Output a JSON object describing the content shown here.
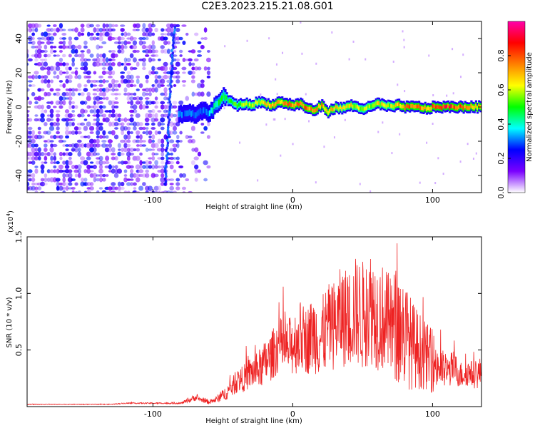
{
  "title": "C2E3.2023.215.21.08.G01",
  "chart_data": [
    {
      "type": "heatmap",
      "xlabel": "Height of straight line (km)",
      "ylabel": "Frequency (Hz)",
      "xlim": [
        -190,
        135
      ],
      "ylim": [
        -50,
        50
      ],
      "x_ticks": [
        -100,
        0,
        100
      ],
      "y_ticks": [
        -40,
        -20,
        0,
        20,
        40
      ],
      "colorbar": {
        "label": "Normalized spectral amplitude",
        "range": [
          0,
          1
        ],
        "ticks": [
          "0.0",
          "0.2",
          "0.4",
          "0.6",
          "0.8"
        ],
        "tick_values": [
          0,
          0.2,
          0.4,
          0.6,
          0.8
        ],
        "colormap": [
          "#ffffff",
          "#7a00ff",
          "#0000ff",
          "#00ffff",
          "#00ff00",
          "#ffff00",
          "#ff8000",
          "#ff0000",
          "#ff00aa"
        ]
      },
      "ridge": {
        "x": [
          -80,
          -75,
          -70,
          -65,
          -60,
          -55,
          -50,
          -45,
          -40,
          -35,
          -30,
          -25,
          -20,
          -15,
          -10,
          -5,
          0,
          5,
          10,
          15,
          20,
          25,
          30,
          35,
          40,
          45,
          50,
          55,
          60,
          65,
          70,
          75,
          80,
          85,
          90,
          95,
          100,
          105,
          110,
          115,
          120,
          125,
          130
        ],
        "y": [
          -4,
          -3,
          -5,
          -2,
          -4,
          2,
          6,
          3,
          1,
          2,
          1,
          3,
          2,
          1,
          3,
          2,
          1,
          2,
          -1,
          -2,
          1,
          -3,
          0,
          -1,
          1,
          0,
          -1,
          0,
          2,
          1,
          0,
          1,
          0,
          0,
          0,
          -1,
          0,
          0,
          0,
          0,
          0,
          0,
          0
        ],
        "amplitude": [
          0.3,
          0.3,
          0.3,
          0.3,
          0.35,
          0.45,
          0.5,
          0.5,
          0.55,
          0.6,
          0.6,
          0.6,
          0.65,
          0.7,
          0.7,
          0.75,
          0.7,
          0.75,
          0.8,
          0.7,
          0.75,
          0.7,
          0.65,
          0.6,
          0.65,
          0.6,
          0.6,
          0.6,
          0.65,
          0.6,
          0.6,
          0.7,
          0.75,
          0.8,
          0.75,
          0.7,
          0.8,
          0.85,
          0.85,
          0.85,
          0.8,
          0.75,
          0.7
        ]
      }
    },
    {
      "type": "line",
      "xlabel": "Height of straight line (km)",
      "ylabel": "SNR (10 * v/v)",
      "y_multiplier": "(x10",
      "y_multiplier_exp": "4",
      "y_multiplier_close": ")",
      "xlim": [
        -190,
        135
      ],
      "ylim": [
        0,
        1.5
      ],
      "x_ticks": [
        -100,
        0,
        100
      ],
      "y_ticks": [
        0.5,
        1.0,
        1.5
      ],
      "y_tick_labels": [
        "0.5",
        "1.0",
        "1.5"
      ],
      "color": "#ee2222",
      "series": [
        {
          "x": [
            -190,
            -180,
            -170,
            -160,
            -150,
            -140,
            -130,
            -120,
            -110,
            -100,
            -90,
            -80,
            -75,
            -70,
            -65,
            -60,
            -55,
            -50,
            -45,
            -40,
            -35,
            -30,
            -25,
            -20,
            -15,
            -10,
            -5,
            0,
            5,
            10,
            15,
            20,
            25,
            30,
            35,
            40,
            45,
            50,
            55,
            60,
            65,
            70,
            75,
            80,
            85,
            90,
            95,
            100,
            105,
            110,
            115,
            120,
            125,
            130,
            135
          ],
          "values": [
            0.02,
            0.02,
            0.02,
            0.02,
            0.02,
            0.02,
            0.02,
            0.03,
            0.03,
            0.03,
            0.03,
            0.03,
            0.05,
            0.08,
            0.06,
            0.04,
            0.06,
            0.1,
            0.15,
            0.22,
            0.25,
            0.3,
            0.32,
            0.38,
            0.45,
            0.55,
            0.5,
            0.55,
            0.62,
            0.58,
            0.65,
            0.6,
            0.7,
            0.72,
            0.8,
            0.78,
            0.85,
            0.8,
            0.9,
            0.82,
            0.78,
            0.7,
            0.72,
            0.65,
            0.55,
            0.5,
            0.45,
            0.4,
            0.35,
            0.3,
            0.35,
            0.28,
            0.3,
            0.28,
            0.3
          ],
          "spread": [
            0.003,
            0.003,
            0.003,
            0.003,
            0.003,
            0.003,
            0.004,
            0.005,
            0.005,
            0.006,
            0.006,
            0.008,
            0.02,
            0.03,
            0.02,
            0.02,
            0.03,
            0.05,
            0.08,
            0.1,
            0.12,
            0.15,
            0.17,
            0.2,
            0.22,
            0.25,
            0.25,
            0.28,
            0.32,
            0.3,
            0.35,
            0.35,
            0.38,
            0.4,
            0.45,
            0.45,
            0.48,
            0.5,
            0.52,
            0.5,
            0.48,
            0.45,
            0.55,
            0.5,
            0.4,
            0.35,
            0.3,
            0.28,
            0.2,
            0.15,
            0.15,
            0.12,
            0.12,
            0.12,
            0.15
          ]
        }
      ]
    }
  ]
}
